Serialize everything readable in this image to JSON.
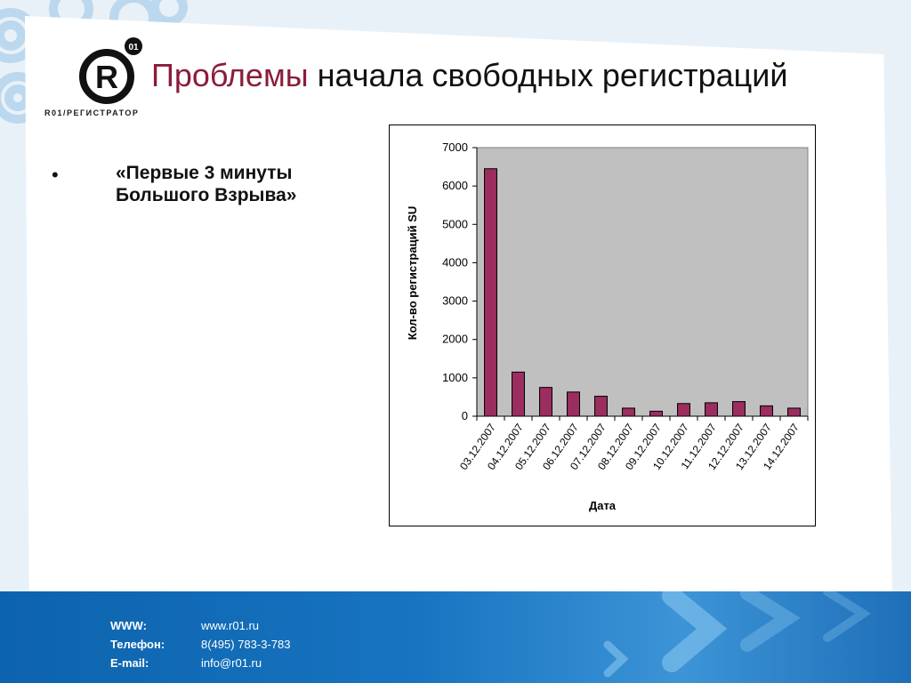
{
  "brand": {
    "logo_letter": "R",
    "logo_badge": "01",
    "logo_caption": "R01/РЕГИСТРАТОР",
    "accent_color": "#8b1c3a",
    "footer_color": "#1773c0"
  },
  "slide": {
    "title_accent": "Проблемы",
    "title_rest": " начала свободных регистраций",
    "bullet_symbol": "•",
    "bullet_text": "«Первые 3 минуты Большого Взрыва»"
  },
  "chart_data": {
    "type": "bar",
    "title": "",
    "xlabel": "Дата",
    "ylabel": "Кол-во регистраций SU",
    "categories": [
      "03.12.2007",
      "04.12.2007",
      "05.12.2007",
      "06.12.2007",
      "07.12.2007",
      "08.12.2007",
      "09.12.2007",
      "10.12.2007",
      "11.12.2007",
      "12.12.2007",
      "13.12.2007",
      "14.12.2007"
    ],
    "values": [
      6450,
      1150,
      750,
      630,
      520,
      210,
      130,
      330,
      350,
      380,
      270,
      210
    ],
    "ylim": [
      0,
      7000
    ],
    "yticks": [
      0,
      1000,
      2000,
      3000,
      4000,
      5000,
      6000,
      7000
    ],
    "bar_color": "#9b2d5f",
    "plot_background": "#c0c0c0",
    "grid": false,
    "legend": "none"
  },
  "footer": {
    "contacts": [
      {
        "label": "WWW:",
        "value": "www.r01.ru"
      },
      {
        "label": "Телефон:",
        "value": "8(495) 783-3-783"
      },
      {
        "label": "E-mail:",
        "value": "info@r01.ru"
      }
    ]
  }
}
